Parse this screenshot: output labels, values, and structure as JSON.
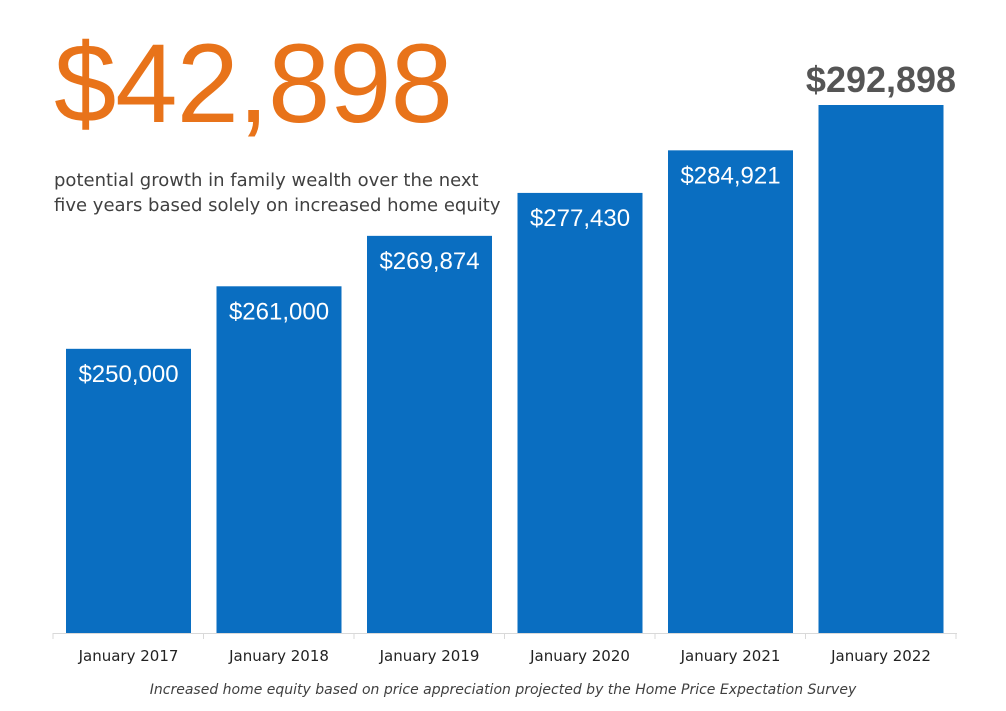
{
  "headline": "$42,898",
  "subtitle": {
    "line1": "potential growth in family wealth over the next",
    "line2": "five years based solely on increased home equity"
  },
  "footnote": "Increased home equity based on price appreciation projected by the Home Price Expectation Survey",
  "colors": {
    "bar": "#0A6EC1",
    "bar_label": "#FFFFFF",
    "last_label": "#555555",
    "headline": "#E8731A",
    "axis": "#D9D9D9",
    "tick_label": "#222222"
  },
  "chart_data": {
    "type": "bar",
    "categories": [
      "January 2017",
      "January 2018",
      "January 2019",
      "January 2020",
      "January 2021",
      "January 2022"
    ],
    "values": [
      250000,
      261000,
      269874,
      277430,
      284921,
      292898
    ],
    "data_labels": [
      "$250,000",
      "$261,000",
      "$269,874",
      "$277,430",
      "$284,921",
      "$292,898"
    ],
    "ylim": [
      200000,
      300000
    ],
    "grid": false,
    "legend": "none",
    "last_label_position": "above-bar"
  }
}
